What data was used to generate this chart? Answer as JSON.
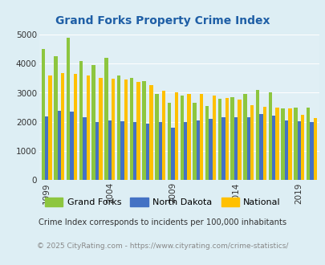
{
  "title": "Grand Forks Property Crime Index",
  "years": [
    1999,
    2000,
    2001,
    2002,
    2003,
    2004,
    2005,
    2006,
    2007,
    2008,
    2009,
    2010,
    2011,
    2012,
    2013,
    2014,
    2015,
    2016,
    2017,
    2018,
    2019,
    2020
  ],
  "grand_forks": [
    4500,
    4250,
    4900,
    4100,
    3950,
    4200,
    3600,
    3500,
    3400,
    2950,
    2650,
    2900,
    2650,
    2550,
    2800,
    2850,
    2950,
    3100,
    3000,
    2450,
    2500,
    2500
  ],
  "north_dakota": [
    2200,
    2380,
    2340,
    2150,
    2000,
    2050,
    2020,
    2000,
    1950,
    2000,
    1800,
    2000,
    2050,
    2100,
    2150,
    2150,
    2150,
    2280,
    2210,
    2050,
    2020,
    2000
  ],
  "national": [
    3600,
    3680,
    3640,
    3600,
    3520,
    3470,
    3450,
    3370,
    3270,
    3060,
    3020,
    2960,
    2950,
    2900,
    2820,
    2760,
    2580,
    2510,
    2480,
    2450,
    2230,
    2130
  ],
  "grand_forks_color": "#8dc63f",
  "north_dakota_color": "#4472c4",
  "national_color": "#ffc000",
  "bg_color": "#ddeef4",
  "plot_bg": "#ddeef4",
  "chart_bg": "#e0eff5",
  "ylabel_vals": [
    0,
    1000,
    2000,
    3000,
    4000,
    5000
  ],
  "x_ticks": [
    1999,
    2004,
    2009,
    2014,
    2019
  ],
  "note": "Crime Index corresponds to incidents per 100,000 inhabitants",
  "copyright": "© 2025 CityRating.com - https://www.cityrating.com/crime-statistics/",
  "title_color": "#1f5fa6",
  "note_color": "#333333",
  "copyright_color": "#888888",
  "ylim": [
    0,
    5000
  ]
}
